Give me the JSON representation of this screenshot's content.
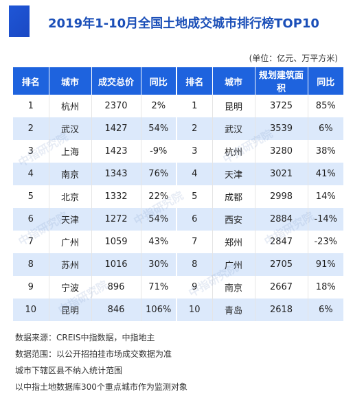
{
  "title": "2019年1-10月全国土地成交城市排行榜TOP10",
  "unit": "(单位：亿元、万平方米)",
  "headers": [
    "排名",
    "城市",
    "成交总价",
    "同比",
    "排名",
    "城市",
    "规划建筑面积",
    "同比"
  ],
  "rows": [
    [
      "1",
      "杭州",
      "2370",
      "2%",
      "1",
      "昆明",
      "3725",
      "85%"
    ],
    [
      "2",
      "武汉",
      "1427",
      "54%",
      "2",
      "武汉",
      "3539",
      "6%"
    ],
    [
      "3",
      "上海",
      "1423",
      "-9%",
      "3",
      "杭州",
      "3280",
      "38%"
    ],
    [
      "4",
      "南京",
      "1343",
      "76%",
      "4",
      "天津",
      "3021",
      "41%"
    ],
    [
      "5",
      "北京",
      "1332",
      "22%",
      "5",
      "成都",
      "2998",
      "14%"
    ],
    [
      "6",
      "天津",
      "1272",
      "54%",
      "6",
      "西安",
      "2884",
      "-14%"
    ],
    [
      "7",
      "广州",
      "1059",
      "43%",
      "7",
      "郑州",
      "2847",
      "-23%"
    ],
    [
      "8",
      "苏州",
      "1016",
      "30%",
      "8",
      "广州",
      "2705",
      "91%"
    ],
    [
      "9",
      "宁波",
      "896",
      "71%",
      "9",
      "南京",
      "2667",
      "18%"
    ],
    [
      "10",
      "昆明",
      "846",
      "106%",
      "10",
      "青岛",
      "2618",
      "6%"
    ]
  ],
  "notes": [
    "数据来源：CREIS中指数据，中指地主",
    "数据范围：以公开招拍挂市场成交数据为准",
    "城市下辖区县不纳入统计范围",
    "以中指土地数据库300个重点城市作为监测对象"
  ],
  "watermark": "中指研究院",
  "colors": {
    "header": "#1e63de",
    "alt_row": "#dce9fb",
    "title": "#1b4fb8",
    "accent": "#1f56d6"
  }
}
